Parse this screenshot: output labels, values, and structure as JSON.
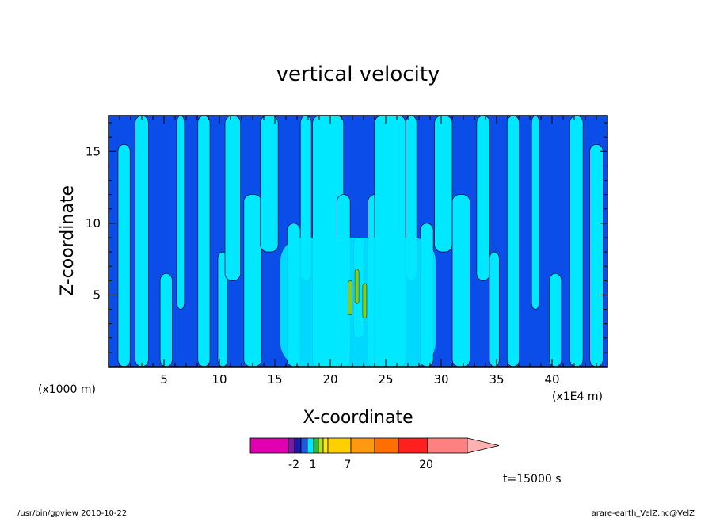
{
  "chart_data": {
    "type": "heatmap",
    "title": "vertical velocity",
    "xlabel": "X-coordinate",
    "ylabel": "Z-coordinate",
    "x_unit_left": "(x1000 m)",
    "x_unit_right": "(x1E4 m)",
    "xlim": [
      0,
      45
    ],
    "ylim": [
      0,
      17.5
    ],
    "x_ticks": [
      5,
      10,
      15,
      20,
      25,
      30,
      35,
      40
    ],
    "y_ticks": [
      5,
      10,
      15
    ],
    "colorbar": {
      "labels": [
        "-2",
        "1",
        "7",
        "20"
      ],
      "colors": [
        "#e000b0",
        "#7a1aa8",
        "#1a1aaa",
        "#1a5ae0",
        "#00e8ff",
        "#20c040",
        "#b0e020",
        "#ffe800",
        "#ffd000",
        "#ff9a10",
        "#ff7000",
        "#ff2020",
        "#ff8080",
        "#ffb0b0"
      ]
    },
    "colors": {
      "background": "#0b4de8",
      "positive": "#00e8ff",
      "strong": "#80d020"
    },
    "annotation": "t=15000 s"
  },
  "footer": {
    "left": "/usr/bin/gpview   2010-10-22",
    "right": "arare-earth_VelZ.nc@VelZ"
  }
}
